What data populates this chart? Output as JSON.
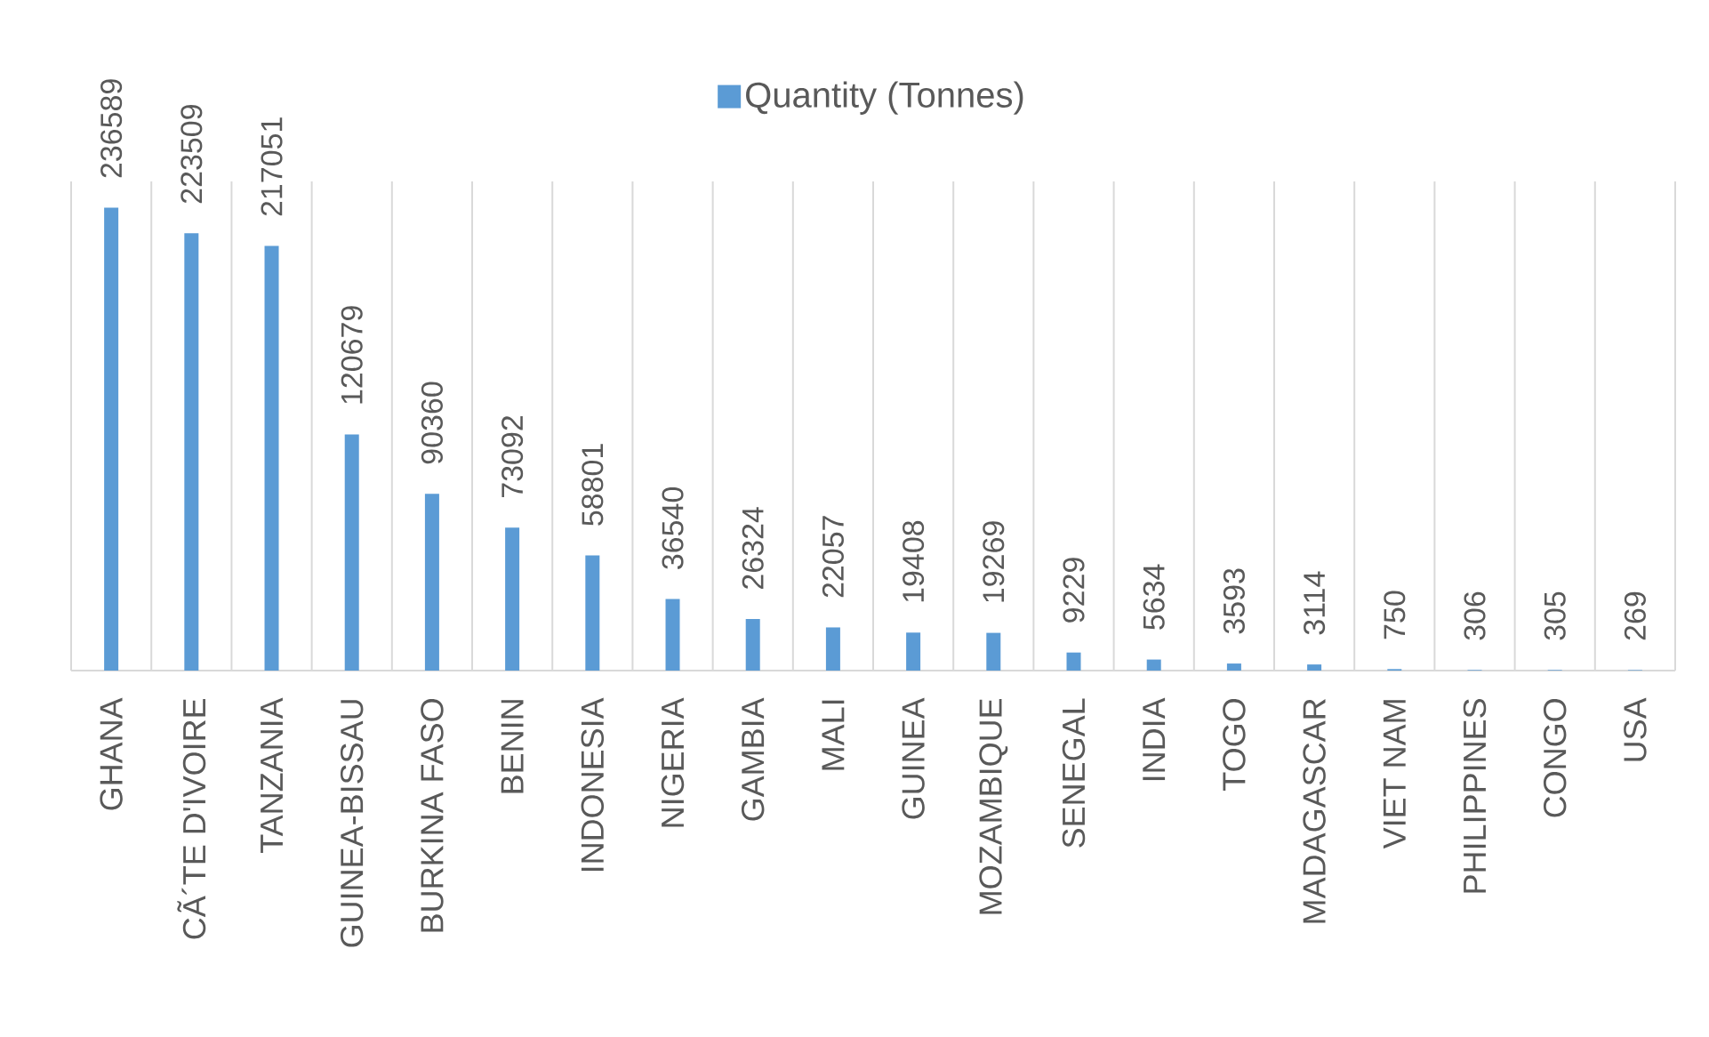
{
  "chart_data": {
    "type": "bar",
    "categories": [
      "GHANA",
      "CÃ´TE D'IVOIRE",
      "TANZANIA",
      "GUINEA-BISSAU",
      "BURKINA FASO",
      "BENIN",
      "INDONESIA",
      "NIGERIA",
      "GAMBIA",
      "MALI",
      "GUINEA",
      "MOZAMBIQUE",
      "SENEGAL",
      "INDIA",
      "TOGO",
      "MADAGASCAR",
      "VIET NAM",
      "PHILIPPINES",
      "CONGO",
      "USA"
    ],
    "series": [
      {
        "name": "Quantity (Tonnes)",
        "color": "#5b9bd5",
        "values": [
          236589,
          223509,
          217051,
          120679,
          90360,
          73092,
          58801,
          36540,
          26324,
          22057,
          19408,
          19269,
          9229,
          5634,
          3593,
          3114,
          750,
          306,
          305,
          269
        ]
      }
    ],
    "ylim": [
      0,
      250000
    ],
    "tick_labels": "x",
    "grid": "x",
    "legend": "top",
    "data_labels": true
  }
}
